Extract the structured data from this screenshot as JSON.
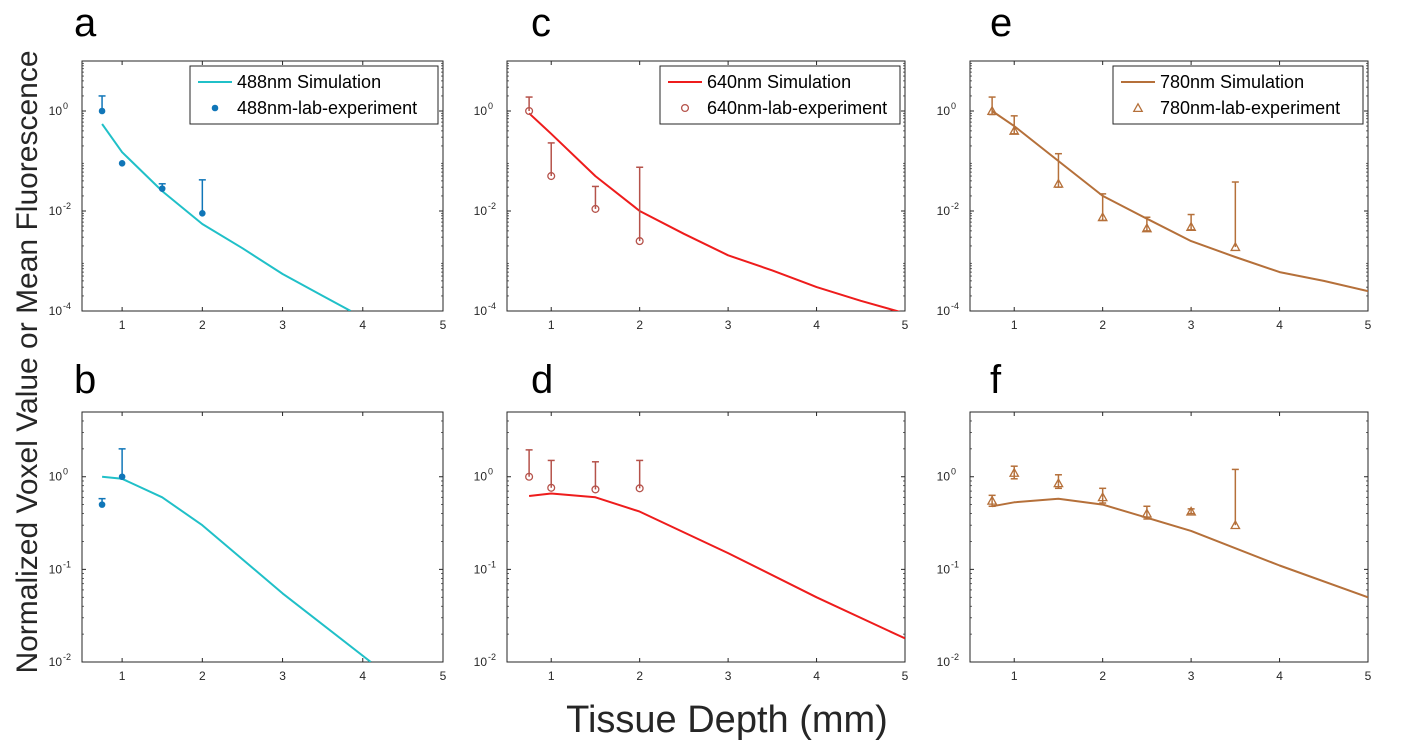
{
  "figure": {
    "ylabel": "Normalized Voxel Value or Mean Fluorescence",
    "xlabel": "Tissue Depth (mm)"
  },
  "chart_data": [
    {
      "id": "a",
      "panel_label": "a",
      "type": "line",
      "yscale": "log",
      "xlim": [
        0.5,
        5
      ],
      "ylim": [
        0.0001,
        10
      ],
      "xticks": [
        1,
        2,
        3,
        4,
        5
      ],
      "xtick_labels": [
        "1",
        "2",
        "3",
        "4",
        "5"
      ],
      "yticks": [
        0.0001,
        0.01,
        1
      ],
      "ytick_labels": [
        [
          "10",
          "-4"
        ],
        [
          "10",
          "-2"
        ],
        [
          "10",
          "0"
        ]
      ],
      "legend_position": "top-right",
      "grid": false,
      "series": [
        {
          "name": "488nm Simulation",
          "kind": "line",
          "color": "#20c0c8",
          "x": [
            0.75,
            1,
            1.5,
            2,
            2.5,
            3,
            3.5,
            3.85
          ],
          "y": [
            0.55,
            0.15,
            0.025,
            0.0055,
            0.0018,
            0.00055,
            0.0002,
            0.0001
          ]
        },
        {
          "name": "488nm-lab-experiment",
          "kind": "points",
          "marker": "dot",
          "color": "#1076b8",
          "x": [
            0.75,
            1,
            1.5,
            2
          ],
          "y": [
            1.0,
            0.09,
            0.028,
            0.009
          ],
          "err_upper": [
            2.0,
            null,
            0.035,
            0.042
          ]
        }
      ]
    },
    {
      "id": "b",
      "panel_label": "b",
      "type": "line",
      "yscale": "log",
      "xlim": [
        0.5,
        5
      ],
      "ylim": [
        0.01,
        5
      ],
      "xticks": [
        1,
        2,
        3,
        4,
        5
      ],
      "xtick_labels": [
        "1",
        "2",
        "3",
        "4",
        "5"
      ],
      "yticks": [
        0.01,
        0.1,
        1
      ],
      "ytick_labels": [
        [
          "10",
          "-2"
        ],
        [
          "10",
          "-1"
        ],
        [
          "10",
          "0"
        ]
      ],
      "grid": false,
      "series": [
        {
          "kind": "line",
          "color": "#20c0c8",
          "x": [
            0.75,
            1,
            1.5,
            2,
            3,
            4.1
          ],
          "y": [
            1.0,
            0.95,
            0.6,
            0.3,
            0.055,
            0.01
          ]
        },
        {
          "kind": "points",
          "marker": "dot",
          "color": "#1076b8",
          "x": [
            0.75,
            1
          ],
          "y": [
            0.5,
            1.0
          ],
          "err_upper": [
            0.58,
            2.0
          ]
        }
      ]
    },
    {
      "id": "c",
      "panel_label": "c",
      "type": "line",
      "yscale": "log",
      "xlim": [
        0.5,
        5
      ],
      "ylim": [
        0.0001,
        10
      ],
      "xticks": [
        1,
        2,
        3,
        4,
        5
      ],
      "xtick_labels": [
        "1",
        "2",
        "3",
        "4",
        "5"
      ],
      "yticks": [
        0.0001,
        0.01,
        1
      ],
      "ytick_labels": [
        [
          "10",
          "-4"
        ],
        [
          "10",
          "-2"
        ],
        [
          "10",
          "0"
        ]
      ],
      "legend_position": "top-right",
      "grid": false,
      "series": [
        {
          "name": "640nm Simulation",
          "kind": "line",
          "color": "#ee1c1c",
          "x": [
            0.75,
            1,
            1.5,
            2,
            2.5,
            3,
            3.5,
            4,
            4.5,
            5
          ],
          "y": [
            0.9,
            0.35,
            0.05,
            0.01,
            0.0035,
            0.0013,
            0.00065,
            0.0003,
            0.00016,
            9e-05
          ]
        },
        {
          "name": "640nm-lab-experiment",
          "kind": "points",
          "marker": "circle",
          "color": "#b5524a",
          "x": [
            0.75,
            1,
            1.5,
            2
          ],
          "y": [
            1.0,
            0.05,
            0.011,
            0.0025
          ],
          "err_upper": [
            1.9,
            0.23,
            0.031,
            0.075
          ]
        }
      ]
    },
    {
      "id": "d",
      "panel_label": "d",
      "type": "line",
      "yscale": "log",
      "xlim": [
        0.5,
        5
      ],
      "ylim": [
        0.01,
        5
      ],
      "xticks": [
        1,
        2,
        3,
        4,
        5
      ],
      "xtick_labels": [
        "1",
        "2",
        "3",
        "4",
        "5"
      ],
      "yticks": [
        0.01,
        0.1,
        1
      ],
      "ytick_labels": [
        [
          "10",
          "-2"
        ],
        [
          "10",
          "-1"
        ],
        [
          "10",
          "0"
        ]
      ],
      "grid": false,
      "series": [
        {
          "kind": "line",
          "color": "#ee1c1c",
          "x": [
            0.75,
            1,
            1.5,
            2,
            3,
            4,
            5
          ],
          "y": [
            0.62,
            0.66,
            0.6,
            0.42,
            0.15,
            0.05,
            0.018
          ]
        },
        {
          "kind": "points",
          "marker": "circle",
          "color": "#b5524a",
          "x": [
            0.75,
            1,
            1.5,
            2
          ],
          "y": [
            1.0,
            0.76,
            0.73,
            0.75
          ],
          "err_upper": [
            1.95,
            1.5,
            1.45,
            1.5
          ]
        }
      ]
    },
    {
      "id": "e",
      "panel_label": "e",
      "type": "line",
      "yscale": "log",
      "xlim": [
        0.5,
        5
      ],
      "ylim": [
        0.0001,
        10
      ],
      "xticks": [
        1,
        2,
        3,
        4,
        5
      ],
      "xtick_labels": [
        "1",
        "2",
        "3",
        "4",
        "5"
      ],
      "yticks": [
        0.0001,
        0.01,
        1
      ],
      "ytick_labels": [
        [
          "10",
          "-4"
        ],
        [
          "10",
          "-2"
        ],
        [
          "10",
          "0"
        ]
      ],
      "legend_position": "top-right",
      "grid": false,
      "series": [
        {
          "name": "780nm Simulation",
          "kind": "line",
          "color": "#b5703a",
          "x": [
            0.75,
            1,
            1.5,
            2,
            2.5,
            3,
            3.5,
            4,
            4.5,
            5
          ],
          "y": [
            1.0,
            0.5,
            0.1,
            0.02,
            0.007,
            0.0025,
            0.0012,
            0.0006,
            0.0004,
            0.00025
          ]
        },
        {
          "name": "780nm-lab-experiment",
          "kind": "points",
          "marker": "triangle",
          "color": "#b5703a",
          "x": [
            0.75,
            1,
            1.5,
            2,
            2.5,
            3,
            3.5
          ],
          "y": [
            1.0,
            0.4,
            0.035,
            0.0075,
            0.0045,
            0.0048,
            0.0019
          ],
          "err_upper": [
            1.9,
            0.8,
            0.14,
            0.022,
            0.0075,
            0.0085,
            0.038
          ],
          "err_lower": [
            0.85,
            0.35,
            0.03,
            0.0065,
            0.004,
            0.0042,
            null
          ]
        }
      ]
    },
    {
      "id": "f",
      "panel_label": "f",
      "type": "line",
      "yscale": "log",
      "xlim": [
        0.5,
        5
      ],
      "ylim": [
        0.01,
        5
      ],
      "xticks": [
        1,
        2,
        3,
        4,
        5
      ],
      "xtick_labels": [
        "1",
        "2",
        "3",
        "4",
        "5"
      ],
      "yticks": [
        0.01,
        0.1,
        1
      ],
      "ytick_labels": [
        [
          "10",
          "-2"
        ],
        [
          "10",
          "-1"
        ],
        [
          "10",
          "0"
        ]
      ],
      "grid": false,
      "series": [
        {
          "kind": "line",
          "color": "#b5703a",
          "x": [
            0.75,
            1,
            1.5,
            2,
            3,
            4,
            5
          ],
          "y": [
            0.48,
            0.53,
            0.58,
            0.5,
            0.26,
            0.11,
            0.05
          ]
        },
        {
          "kind": "points",
          "marker": "triangle",
          "color": "#b5703a",
          "x": [
            0.75,
            1,
            1.5,
            2,
            2.5,
            3,
            3.5
          ],
          "y": [
            0.55,
            1.1,
            0.85,
            0.6,
            0.4,
            0.42,
            0.3
          ],
          "err_upper": [
            0.63,
            1.3,
            1.05,
            0.75,
            0.48,
            0.45,
            1.2
          ],
          "err_lower": [
            0.48,
            0.95,
            0.75,
            0.52,
            0.35,
            0.4,
            null
          ]
        }
      ]
    }
  ]
}
